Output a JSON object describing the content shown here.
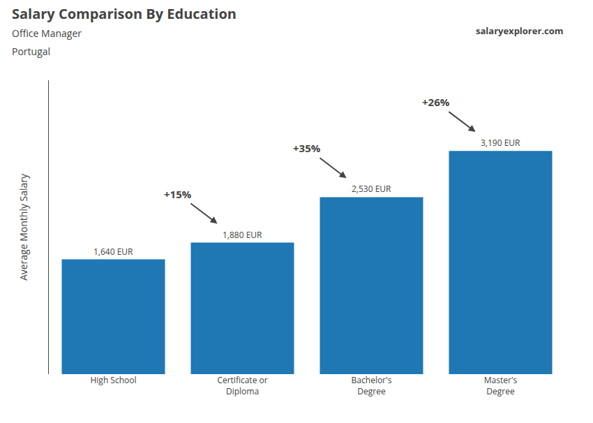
{
  "chart_data": {
    "type": "bar",
    "title": "Salary Comparison By Education",
    "subtitle": [
      "Office Manager",
      "Portugal"
    ],
    "ylabel": "Average Monthly Salary",
    "source": "salaryexplorer.com",
    "categories": [
      "High School",
      "Certificate or\nDiploma",
      "Bachelor's\nDegree",
      "Master's\nDegree"
    ],
    "values": [
      1640,
      1880,
      2530,
      3190
    ],
    "value_labels": [
      "1,640 EUR",
      "1,880 EUR",
      "2,530 EUR",
      "3,190 EUR"
    ],
    "data_labels": true,
    "annotations": [
      {
        "text": "+15%",
        "from": "High School",
        "to": "Certificate or\nDiploma"
      },
      {
        "text": "+35%",
        "from": "Certificate or\nDiploma",
        "to": "Bachelor's\nDegree"
      },
      {
        "text": "+26%",
        "from": "Bachelor's\nDegree",
        "to": "Master's\nDegree"
      }
    ],
    "ylim": [
      0,
      4200
    ],
    "yticks": [],
    "tick_labels": "x",
    "grid": false
  }
}
